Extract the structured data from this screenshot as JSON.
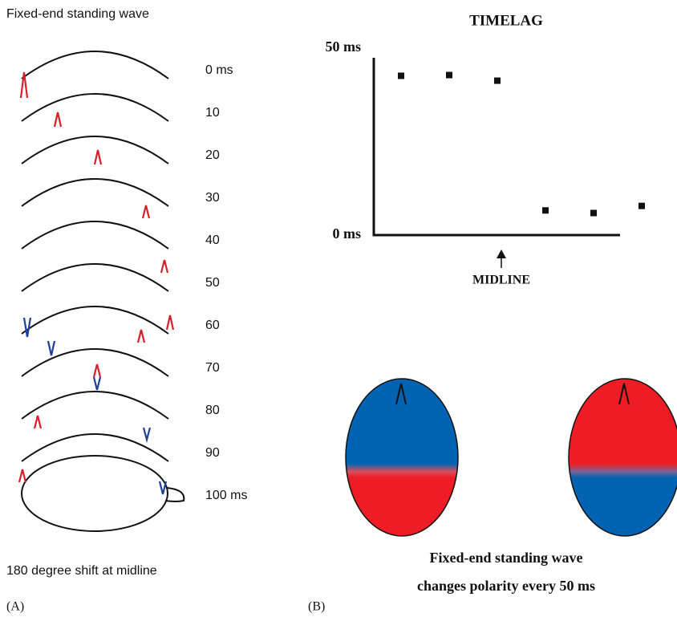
{
  "panel_a": {
    "title": "Fixed-end standing wave",
    "time_labels": [
      "0 ms",
      "10",
      "20",
      "30",
      "40",
      "50",
      "60",
      "70",
      "80",
      "90",
      "100 ms"
    ],
    "caption": "180 degree shift at midline",
    "tag": "(A)"
  },
  "chart_data": {
    "type": "scatter",
    "title": "TIMELAG",
    "categories": [
      null,
      null,
      null,
      null,
      null,
      null
    ],
    "values": [
      42.6,
      42.8,
      41.3,
      6.6,
      5.9,
      7.8
    ],
    "ylim": [
      0,
      50
    ],
    "yticks": [
      {
        "value": 0,
        "label": "0 ms"
      },
      {
        "value": 50,
        "label": "50 ms"
      }
    ],
    "annotation": "MIDLINE",
    "color": "#111111"
  },
  "panel_b": {
    "caption": [
      "Fixed-end standing wave",
      "changes polarity every 50 ms"
    ],
    "tag": "(B)"
  }
}
